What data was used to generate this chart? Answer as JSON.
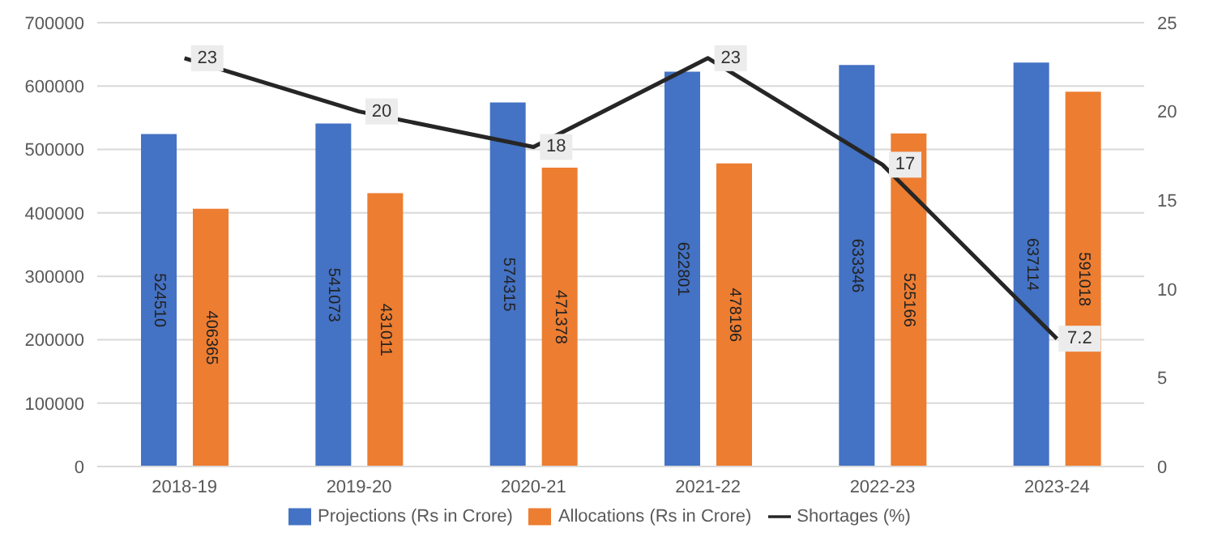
{
  "chart_data": {
    "type": "bar",
    "categories": [
      "2018-19",
      "2019-20",
      "2020-21",
      "2021-22",
      "2022-23",
      "2023-24"
    ],
    "series": [
      {
        "name": "Projections (Rs in Crore)",
        "color": "#4472c4",
        "values": [
          524510,
          541073,
          574315,
          622801,
          633346,
          637114
        ]
      },
      {
        "name": "Allocations (Rs in Crore)",
        "color": "#ed7d31",
        "values": [
          406365,
          431011,
          471378,
          478196,
          525166,
          591018
        ]
      },
      {
        "name": "Shortages (%)",
        "color": "#262626",
        "type": "line",
        "axis": "y2",
        "values": [
          23,
          20,
          18,
          23,
          17,
          7.2
        ]
      }
    ],
    "ylim": [
      0,
      700000
    ],
    "yticks": [
      0,
      100000,
      200000,
      300000,
      400000,
      500000,
      600000,
      700000
    ],
    "y2lim": [
      0,
      25
    ],
    "y2ticks": [
      0,
      5,
      10,
      15,
      20,
      25
    ],
    "data_labels": true,
    "grid": "y",
    "legend": "bottom",
    "marker": "none"
  }
}
